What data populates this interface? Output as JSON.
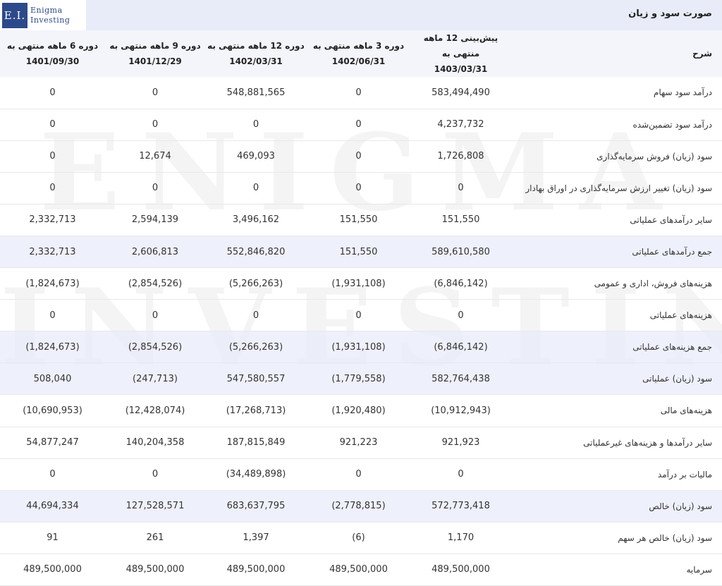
{
  "header": {
    "title": "صورت سود و زیان"
  },
  "logo": {
    "mark": "E.I.",
    "line1": "Enigma",
    "line2": "Investing"
  },
  "watermark": {
    "line1": "ENIGMA",
    "line2": "INVESTING"
  },
  "columns": {
    "desc": "شرح",
    "c1": {
      "line1": "پیش‌بینی 12 ماهه منتهی به",
      "line2": "1403/03/31"
    },
    "c2": {
      "line1": "دوره 3 ماهه منتهی به",
      "line2": "1402/06/31"
    },
    "c3": {
      "line1": "دوره 12 ماهه منتهی به",
      "line2": "1402/03/31"
    },
    "c4": {
      "line1": "دوره 9 ماهه منتهی به",
      "line2": "1401/12/29"
    },
    "c5": {
      "line1": "دوره 6 ماهه منتهی به",
      "line2": "1401/09/30"
    }
  },
  "rows": [
    {
      "label": "درآمد سود سهام",
      "v": [
        "583,494,490",
        "0",
        "548,881,565",
        "0",
        "0"
      ]
    },
    {
      "label": "درآمد سود تضمین‌شده",
      "v": [
        "4,237,732",
        "0",
        "0",
        "0",
        "0"
      ]
    },
    {
      "label": "سود (زیان) فروش سرمایه‌گذاری",
      "v": [
        "1,726,808",
        "0",
        "469,093",
        "12,674",
        "0"
      ]
    },
    {
      "label": "سود (زیان) تغییر ارزش سرمایه‌گذاری در اوراق بهادار",
      "v": [
        "0",
        "0",
        "0",
        "0",
        "0"
      ]
    },
    {
      "label": "سایر درآمدهای عملیاتی",
      "v": [
        "151,550",
        "151,550",
        "3,496,162",
        "2,594,139",
        "2,332,713"
      ]
    },
    {
      "label": "جمع درآمدهای عملیاتی",
      "v": [
        "589,610,580",
        "151,550",
        "552,846,820",
        "2,606,813",
        "2,332,713"
      ]
    },
    {
      "label": "هزینه‌های فروش، اداری و عمومی",
      "v": [
        "(6,846,142)",
        "(1,931,108)",
        "(5,266,263)",
        "(2,854,526)",
        "(1,824,673)"
      ]
    },
    {
      "label": "هزینه‌های عملیاتی",
      "v": [
        "0",
        "0",
        "0",
        "0",
        "0"
      ]
    },
    {
      "label": "جمع هزینه‌های عملیاتی",
      "v": [
        "(6,846,142)",
        "(1,931,108)",
        "(5,266,263)",
        "(2,854,526)",
        "(1,824,673)"
      ]
    },
    {
      "label": "سود (زیان) عملیاتی",
      "v": [
        "582,764,438",
        "(1,779,558)",
        "547,580,557",
        "(247,713)",
        "508,040"
      ]
    },
    {
      "label": "هزینه‌های مالی",
      "v": [
        "(10,912,943)",
        "(1,920,480)",
        "(17,268,713)",
        "(12,428,074)",
        "(10,690,953)"
      ]
    },
    {
      "label": "سایر درآمدها و هزینه‌های غیرعملیاتی",
      "v": [
        "921,923",
        "921,223",
        "187,815,849",
        "140,204,358",
        "54,877,247"
      ]
    },
    {
      "label": "مالیات بر درآمد",
      "v": [
        "0",
        "0",
        "(34,489,898)",
        "0",
        "0"
      ]
    },
    {
      "label": "سود (زیان) خالص",
      "v": [
        "572,773,418",
        "(2,778,815)",
        "683,637,795",
        "127,528,571",
        "44,694,334"
      ]
    },
    {
      "label": "سود (زیان) خالص هر سهم",
      "v": [
        "1,170",
        "(6)",
        "1,397",
        "261",
        "91"
      ]
    },
    {
      "label": "سرمایه",
      "v": [
        "489,500,000",
        "489,500,000",
        "489,500,000",
        "489,500,000",
        "489,500,000"
      ]
    }
  ]
}
